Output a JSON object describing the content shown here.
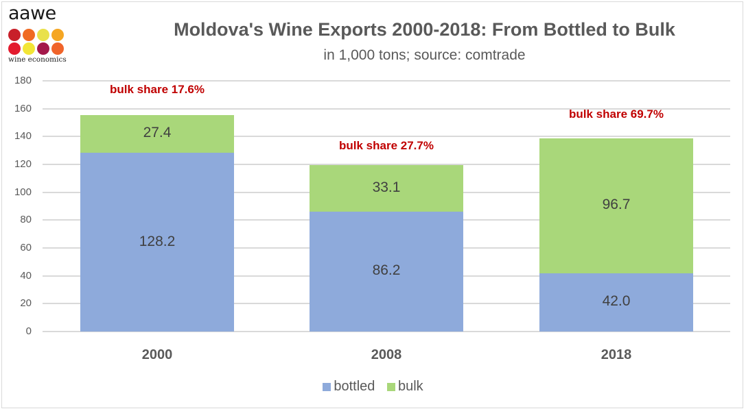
{
  "logo": {
    "wordmark": "aawe",
    "tagline": "wine economics",
    "dot_colors": [
      "#c8202a",
      "#f06a22",
      "#e9e14a",
      "#f5a623",
      "#e31b2e",
      "#f2e536",
      "#a3184a",
      "#f0642a"
    ]
  },
  "colors": {
    "bottled": "#8eaadb",
    "bulk": "#a9d77a",
    "annotation": "#c00000",
    "gridline": "#d9d9d9",
    "text": "#595959"
  },
  "chart_data": {
    "type": "bar",
    "stacked": true,
    "title": "Moldova's Wine Exports 2000-2018: From Bottled to Bulk",
    "subtitle": "in 1,000 tons; source: comtrade",
    "xlabel": "",
    "ylabel": "",
    "ylim": [
      0,
      180
    ],
    "yticks": [
      "0",
      "20",
      "40",
      "60",
      "80",
      "100",
      "120",
      "140",
      "160",
      "180"
    ],
    "grid": true,
    "legend_position": "bottom",
    "categories": [
      "2000",
      "2008",
      "2018"
    ],
    "series": [
      {
        "name": "bottled",
        "values": [
          128.2,
          86.2,
          42.0
        ],
        "labels": [
          "128.2",
          "86.2",
          "42.0"
        ]
      },
      {
        "name": "bulk",
        "values": [
          27.4,
          33.1,
          96.7
        ],
        "labels": [
          "27.4",
          "33.1",
          "96.7"
        ]
      }
    ],
    "annotations": [
      "bulk share 17.6%",
      "bulk share 27.7%",
      "bulk share 69.7%"
    ],
    "legend": [
      "bottled",
      "bulk"
    ]
  }
}
